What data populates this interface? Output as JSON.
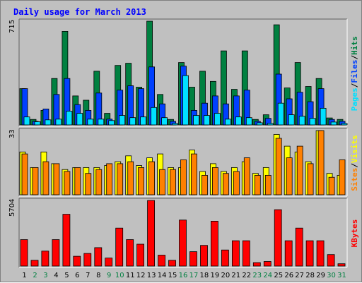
{
  "title": "Daily usage for March 2013",
  "colors": {
    "background": "#c0c0c0",
    "hits": "#008040",
    "files": "#0040ff",
    "pages": "#00e0ff",
    "visits": "#ffff00",
    "sites": "#ff8000",
    "kbytes": "#ff0000",
    "weekday_label": "#000000",
    "weekend_label": "#008040",
    "title": "#0000ff"
  },
  "chart_data": [
    {
      "type": "bar",
      "name": "hits-files-pages",
      "max_label": "715",
      "ylim": [
        0,
        715
      ],
      "right_labels": [
        "Pages",
        "Files",
        "Hits"
      ],
      "categories": [
        "1",
        "2",
        "3",
        "4",
        "5",
        "6",
        "7",
        "8",
        "9",
        "10",
        "11",
        "12",
        "13",
        "14",
        "15",
        "16",
        "17",
        "18",
        "19",
        "20",
        "21",
        "22",
        "23",
        "24",
        "25",
        "26",
        "27",
        "28",
        "29",
        "30",
        "31"
      ],
      "series": [
        {
          "name": "Hits",
          "values": [
            250,
            38,
            100,
            320,
            645,
            200,
            170,
            370,
            80,
            410,
            425,
            260,
            715,
            210,
            38,
            430,
            260,
            370,
            300,
            510,
            245,
            510,
            38,
            70,
            690,
            255,
            430,
            265,
            320,
            48,
            38
          ]
        },
        {
          "name": "Files",
          "values": [
            250,
            25,
            110,
            210,
            320,
            140,
            100,
            220,
            40,
            240,
            270,
            250,
            400,
            145,
            25,
            405,
            100,
            150,
            200,
            145,
            200,
            240,
            25,
            45,
            350,
            180,
            225,
            160,
            250,
            38,
            25
          ]
        },
        {
          "name": "Pages",
          "values": [
            55,
            22,
            35,
            40,
            95,
            80,
            40,
            40,
            30,
            65,
            50,
            55,
            120,
            50,
            10,
            340,
            65,
            65,
            80,
            40,
            55,
            50,
            15,
            10,
            150,
            70,
            60,
            45,
            115,
            20,
            10
          ]
        }
      ]
    },
    {
      "type": "bar",
      "name": "visits-sites",
      "max_label": "33",
      "ylim": [
        0,
        33
      ],
      "right_labels": [
        "Sites",
        "Visits"
      ],
      "categories": [
        "1",
        "2",
        "3",
        "4",
        "5",
        "6",
        "7",
        "8",
        "9",
        "10",
        "11",
        "12",
        "13",
        "14",
        "15",
        "16",
        "17",
        "18",
        "19",
        "20",
        "21",
        "22",
        "23",
        "24",
        "25",
        "26",
        "27",
        "28",
        "29",
        "30",
        "31"
      ],
      "series": [
        {
          "name": "Visits",
          "values": [
            22,
            14,
            22,
            16,
            13,
            14,
            14,
            14,
            15,
            17,
            20,
            15,
            19,
            21,
            14,
            14,
            23,
            12,
            16,
            12,
            14,
            17,
            11,
            14,
            31,
            25,
            22,
            17,
            33,
            11,
            10
          ]
        },
        {
          "name": "Sites",
          "values": [
            21,
            14,
            17,
            16,
            12,
            14,
            11,
            13,
            16,
            16,
            17,
            14,
            17,
            13,
            13,
            18,
            21,
            10,
            14,
            11,
            12,
            19,
            10,
            10,
            29,
            19,
            25,
            16,
            33,
            9,
            18
          ]
        }
      ]
    },
    {
      "type": "bar",
      "name": "kbytes",
      "max_label": "5704",
      "ylim": [
        0,
        5704
      ],
      "right_labels": [
        "KBytes"
      ],
      "categories": [
        "1",
        "2",
        "3",
        "4",
        "5",
        "6",
        "7",
        "8",
        "9",
        "10",
        "11",
        "12",
        "13",
        "14",
        "15",
        "16",
        "17",
        "18",
        "19",
        "20",
        "21",
        "22",
        "23",
        "24",
        "25",
        "26",
        "27",
        "28",
        "29",
        "30",
        "31"
      ],
      "series": [
        {
          "name": "KBytes",
          "values": [
            2300,
            500,
            1300,
            2300,
            4500,
            850,
            1100,
            1600,
            700,
            3300,
            2300,
            1900,
            5704,
            950,
            500,
            4000,
            1250,
            1800,
            3900,
            1400,
            2200,
            2200,
            300,
            400,
            4900,
            2200,
            3300,
            2200,
            2200,
            1000,
            200
          ]
        }
      ]
    }
  ],
  "x_labels": [
    "1",
    "2",
    "3",
    "4",
    "5",
    "6",
    "7",
    "8",
    "9",
    "10",
    "11",
    "12",
    "13",
    "14",
    "15",
    "16",
    "17",
    "18",
    "19",
    "20",
    "21",
    "22",
    "23",
    "24",
    "25",
    "26",
    "27",
    "28",
    "29",
    "30",
    "31"
  ],
  "weekend_days": [
    "2",
    "3",
    "9",
    "10",
    "16",
    "17",
    "23",
    "24",
    "30",
    "31"
  ]
}
